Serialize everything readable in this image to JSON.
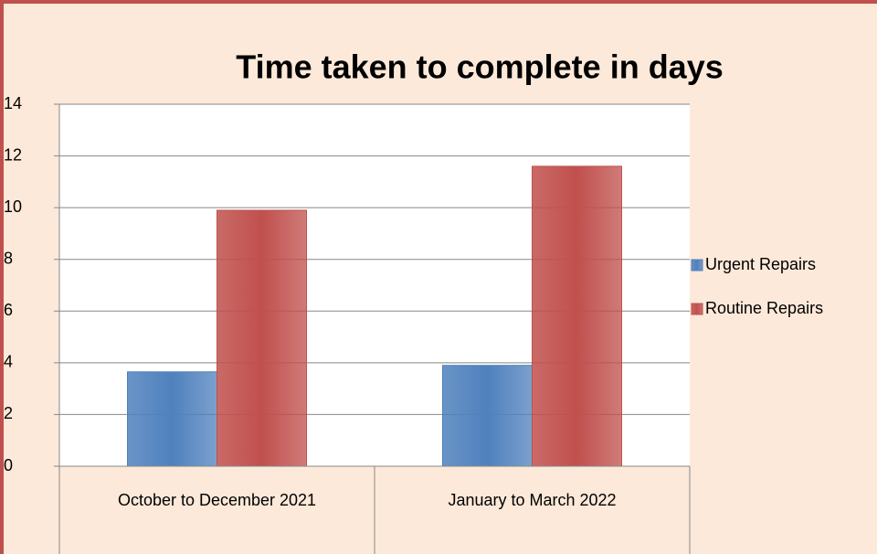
{
  "chart_data": {
    "type": "bar",
    "title": "Time taken to complete in days",
    "categories": [
      "October to December 2021",
      "January to March 2022"
    ],
    "series": [
      {
        "name": "Urgent Repairs",
        "color": "#4f81bd",
        "values": [
          3.65,
          3.9
        ]
      },
      {
        "name": "Routine Repairs",
        "color": "#c0504d",
        "values": [
          9.9,
          11.6
        ]
      }
    ],
    "ylim": [
      0,
      14
    ],
    "yticks": [
      0,
      2,
      4,
      6,
      8,
      10,
      12,
      14
    ],
    "grid": true,
    "legend": "right"
  }
}
